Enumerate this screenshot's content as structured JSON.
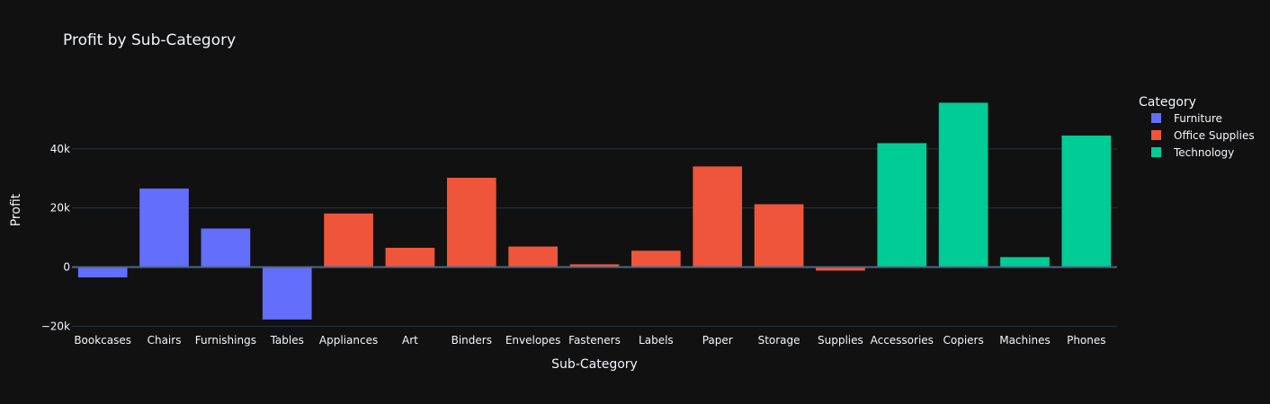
{
  "chart_data": {
    "type": "bar",
    "title": "Profit by Sub-Category",
    "xlabel": "Sub-Category",
    "ylabel": "Profit",
    "ylim": [
      -20500,
      60000
    ],
    "yticks": [
      {
        "value": -20000,
        "label": "−20k"
      },
      {
        "value": 0,
        "label": "0"
      },
      {
        "value": 20000,
        "label": "20k"
      },
      {
        "value": 40000,
        "label": "40k"
      }
    ],
    "grid": true,
    "legend": {
      "title": "Category",
      "placement": "right"
    },
    "categories": [
      "Bookcases",
      "Chairs",
      "Furnishings",
      "Tables",
      "Appliances",
      "Art",
      "Binders",
      "Envelopes",
      "Fasteners",
      "Labels",
      "Paper",
      "Storage",
      "Supplies",
      "Accessories",
      "Copiers",
      "Machines",
      "Phones"
    ],
    "series": [
      {
        "name": "Furniture",
        "color": "#636efa",
        "points": [
          {
            "category": "Bookcases",
            "value": -3473
          },
          {
            "category": "Chairs",
            "value": 26590
          },
          {
            "category": "Furnishings",
            "value": 13059
          },
          {
            "category": "Tables",
            "value": -17725
          }
        ]
      },
      {
        "name": "Office Supplies",
        "color": "#ef553b",
        "points": [
          {
            "category": "Appliances",
            "value": 18138
          },
          {
            "category": "Art",
            "value": 6528
          },
          {
            "category": "Binders",
            "value": 30222
          },
          {
            "category": "Envelopes",
            "value": 6964
          },
          {
            "category": "Fasteners",
            "value": 950
          },
          {
            "category": "Labels",
            "value": 5546
          },
          {
            "category": "Paper",
            "value": 34054
          },
          {
            "category": "Storage",
            "value": 21279
          },
          {
            "category": "Supplies",
            "value": -1189
          }
        ]
      },
      {
        "name": "Technology",
        "color": "#00cc96",
        "points": [
          {
            "category": "Accessories",
            "value": 41937
          },
          {
            "category": "Copiers",
            "value": 55618
          },
          {
            "category": "Machines",
            "value": 3385
          },
          {
            "category": "Phones",
            "value": 44516
          }
        ]
      }
    ]
  }
}
